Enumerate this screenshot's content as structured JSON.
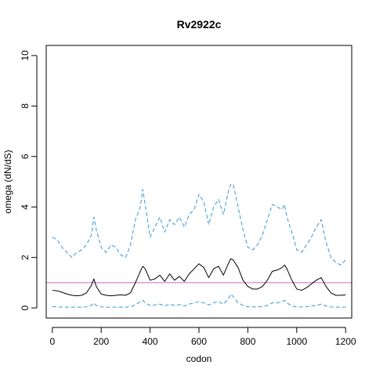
{
  "chart_data": {
    "type": "line",
    "title": "Rv2922c",
    "xlabel": "codon",
    "ylabel": "omega (dN/dS)",
    "xlim": [
      -25,
      1225
    ],
    "ylim": [
      -0.4,
      10.4
    ],
    "xticks": [
      0,
      200,
      400,
      600,
      800,
      1000,
      1200
    ],
    "yticks": [
      0,
      2,
      4,
      6,
      8,
      10
    ],
    "grid": false,
    "reference_line": {
      "y": 1,
      "color": "#cc66cc"
    },
    "colors": {
      "estimate": "#000000",
      "upper": "#3399dd",
      "lower": "#3399dd"
    },
    "series": [
      {
        "style": "solid",
        "color": "#000000",
        "x": [
          0,
          20,
          40,
          60,
          80,
          100,
          120,
          140,
          160,
          170,
          180,
          200,
          220,
          240,
          260,
          280,
          300,
          320,
          340,
          360,
          370,
          380,
          400,
          420,
          440,
          460,
          480,
          500,
          520,
          540,
          560,
          580,
          600,
          620,
          640,
          660,
          680,
          700,
          720,
          730,
          740,
          760,
          780,
          800,
          820,
          840,
          860,
          880,
          900,
          920,
          940,
          950,
          960,
          980,
          1000,
          1020,
          1040,
          1060,
          1080,
          1100,
          1120,
          1140,
          1160,
          1180,
          1200
        ],
        "y": [
          0.7,
          0.68,
          0.62,
          0.55,
          0.5,
          0.48,
          0.5,
          0.6,
          0.9,
          1.15,
          0.85,
          0.55,
          0.5,
          0.48,
          0.5,
          0.52,
          0.5,
          0.6,
          1.0,
          1.45,
          1.65,
          1.55,
          1.1,
          1.15,
          1.3,
          1.05,
          1.35,
          1.1,
          1.25,
          1.05,
          1.35,
          1.55,
          1.75,
          1.6,
          1.2,
          1.55,
          1.65,
          1.3,
          1.75,
          1.95,
          1.9,
          1.6,
          1.1,
          0.85,
          0.75,
          0.75,
          0.85,
          1.1,
          1.45,
          1.5,
          1.6,
          1.7,
          1.55,
          1.1,
          0.75,
          0.7,
          0.8,
          0.95,
          1.1,
          1.2,
          0.85,
          0.6,
          0.5,
          0.5,
          0.52
        ]
      },
      {
        "style": "dashed",
        "color": "#3399dd",
        "x": [
          0,
          20,
          40,
          60,
          80,
          100,
          120,
          140,
          160,
          170,
          180,
          200,
          220,
          240,
          260,
          280,
          300,
          320,
          340,
          360,
          370,
          380,
          400,
          420,
          440,
          460,
          480,
          500,
          520,
          540,
          560,
          580,
          600,
          620,
          640,
          660,
          680,
          700,
          720,
          730,
          740,
          760,
          780,
          800,
          820,
          840,
          860,
          880,
          900,
          920,
          940,
          950,
          960,
          980,
          1000,
          1020,
          1040,
          1060,
          1080,
          1100,
          1120,
          1140,
          1160,
          1180,
          1200
        ],
        "y": [
          2.8,
          2.7,
          2.4,
          2.2,
          2.0,
          2.2,
          2.3,
          2.5,
          2.9,
          3.6,
          3.1,
          2.4,
          2.2,
          2.5,
          2.4,
          2.1,
          2.0,
          2.5,
          3.5,
          4.0,
          4.7,
          4.1,
          2.8,
          3.2,
          3.6,
          3.0,
          3.5,
          3.3,
          3.6,
          3.2,
          3.7,
          3.9,
          4.5,
          4.2,
          3.3,
          4.0,
          4.3,
          3.7,
          4.6,
          4.9,
          4.9,
          4.0,
          3.1,
          2.4,
          2.3,
          2.5,
          2.9,
          3.5,
          4.1,
          4.0,
          3.9,
          4.1,
          3.6,
          3.0,
          2.3,
          2.2,
          2.5,
          2.8,
          3.2,
          3.5,
          2.6,
          2.0,
          1.8,
          1.7,
          1.9
        ]
      },
      {
        "style": "dashed",
        "color": "#3399dd",
        "x": [
          0,
          20,
          40,
          60,
          80,
          100,
          120,
          140,
          160,
          170,
          180,
          200,
          220,
          240,
          260,
          280,
          300,
          320,
          340,
          360,
          370,
          380,
          400,
          420,
          440,
          460,
          480,
          500,
          520,
          540,
          560,
          580,
          600,
          620,
          640,
          660,
          680,
          700,
          720,
          730,
          740,
          760,
          780,
          800,
          820,
          840,
          860,
          880,
          900,
          920,
          940,
          950,
          960,
          980,
          1000,
          1020,
          1040,
          1060,
          1080,
          1100,
          1120,
          1140,
          1160,
          1180,
          1200
        ],
        "y": [
          0.05,
          0.04,
          0.03,
          0.03,
          0.03,
          0.03,
          0.03,
          0.04,
          0.1,
          0.2,
          0.1,
          0.04,
          0.03,
          0.03,
          0.03,
          0.03,
          0.03,
          0.05,
          0.12,
          0.25,
          0.3,
          0.2,
          0.1,
          0.12,
          0.15,
          0.08,
          0.15,
          0.1,
          0.13,
          0.08,
          0.15,
          0.2,
          0.25,
          0.2,
          0.12,
          0.2,
          0.25,
          0.15,
          0.35,
          0.55,
          0.45,
          0.2,
          0.1,
          0.05,
          0.04,
          0.04,
          0.05,
          0.1,
          0.2,
          0.2,
          0.25,
          0.3,
          0.2,
          0.08,
          0.04,
          0.04,
          0.05,
          0.08,
          0.1,
          0.15,
          0.08,
          0.04,
          0.03,
          0.03,
          0.03
        ]
      }
    ]
  }
}
